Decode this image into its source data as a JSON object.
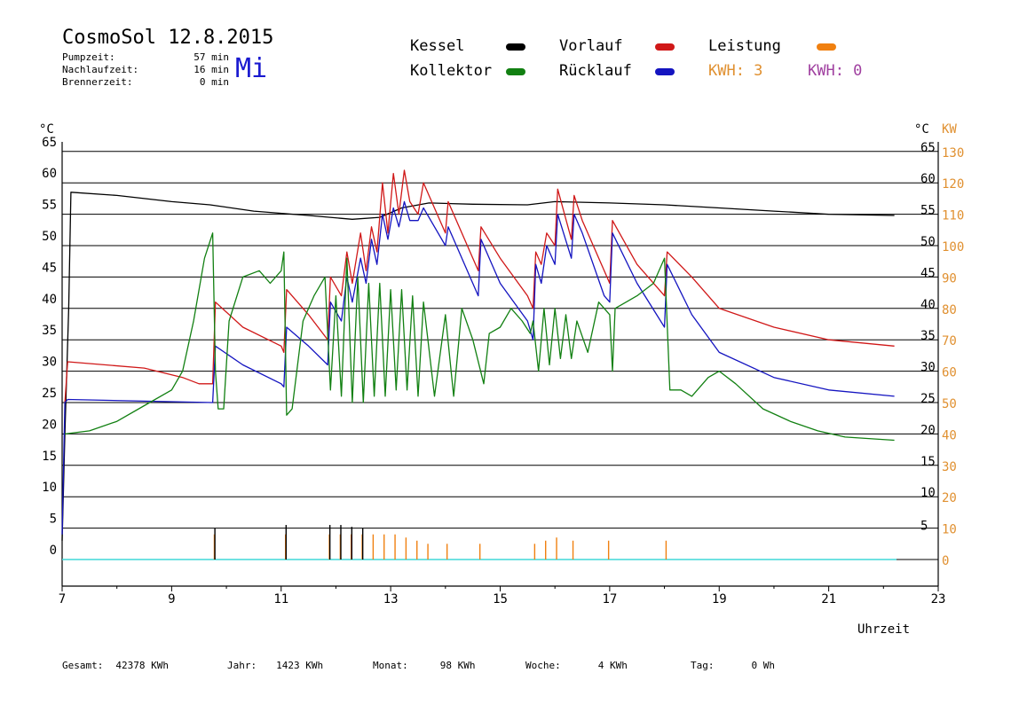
{
  "header": {
    "title": "CosmoSol 12.8.2015",
    "weekday": "Mi",
    "info": [
      {
        "label": "Pumpzeit:",
        "value": "57 min"
      },
      {
        "label": "Nachlaufzeit:",
        "value": "16 min"
      },
      {
        "label": "Brennerzeit:",
        "value": "0 min"
      }
    ]
  },
  "legend": {
    "kessel": {
      "label": "Kessel",
      "color": "#000000"
    },
    "vorlauf": {
      "label": "Vorlauf",
      "color": "#d01818"
    },
    "leistung": {
      "label": "Leistung",
      "color": "#f08010"
    },
    "kollektor": {
      "label": "Kollektor",
      "color": "#128012"
    },
    "ruecklauf": {
      "label": "Rücklauf",
      "color": "#1414c0"
    },
    "kwh1": {
      "label": "KWH: 3",
      "color": "#e09030"
    },
    "kwh2": {
      "label": "KWH: 0",
      "color": "#a040a0"
    }
  },
  "footer": [
    {
      "label": "Gesamt:",
      "value": "42378 KWh"
    },
    {
      "label": "Jahr:",
      "value": "1423 KWh"
    },
    {
      "label": "Monat:",
      "value": "98 KWh"
    },
    {
      "label": "Woche:",
      "value": "4 KWh"
    },
    {
      "label": "Tag:",
      "value": "0 Wh"
    }
  ],
  "chart_data": {
    "type": "line",
    "xlabel": "Uhrzeit",
    "ylabel_left": "°C",
    "ylabel_right_temp": "°C",
    "ylabel_right_power": "KW",
    "xlim": [
      7,
      23
    ],
    "ylim": [
      -2.5,
      68
    ],
    "x_ticks": [
      7,
      9,
      11,
      13,
      15,
      17,
      19,
      21,
      23
    ],
    "y_ticks": [
      0,
      5,
      10,
      15,
      20,
      25,
      30,
      35,
      40,
      45,
      50,
      55,
      60,
      65
    ],
    "y_ticks_right": [
      5,
      10,
      15,
      20,
      25,
      30,
      35,
      40,
      45,
      50,
      55,
      60,
      65
    ],
    "power_ticks": [
      0,
      10,
      20,
      30,
      40,
      50,
      60,
      70,
      80,
      90,
      100,
      110,
      120,
      130
    ],
    "gridlines": [
      0,
      5,
      10,
      15,
      20,
      25,
      30,
      35,
      40,
      45,
      50,
      55,
      60,
      65
    ],
    "baseline": {
      "y": 0,
      "color": "#40d8d8"
    },
    "series": [
      {
        "key": "kessel",
        "color": "#000000",
        "points": [
          [
            7.0,
            3
          ],
          [
            7.05,
            20
          ],
          [
            7.12,
            40
          ],
          [
            7.16,
            58.5
          ],
          [
            8,
            58
          ],
          [
            9,
            57
          ],
          [
            9.7,
            56.5
          ],
          [
            10.5,
            55.5
          ],
          [
            11.5,
            54.8
          ],
          [
            12.3,
            54.2
          ],
          [
            12.8,
            54.5
          ],
          [
            13.2,
            56
          ],
          [
            13.7,
            56.8
          ],
          [
            14.5,
            56.6
          ],
          [
            15.5,
            56.5
          ],
          [
            16,
            57
          ],
          [
            17,
            56.8
          ],
          [
            18,
            56.5
          ],
          [
            19,
            56
          ],
          [
            20,
            55.5
          ],
          [
            21,
            55
          ],
          [
            22.2,
            54.8
          ]
        ]
      },
      {
        "key": "vorlauf",
        "color": "#d01818",
        "points": [
          [
            7.05,
            25
          ],
          [
            7.1,
            31.5
          ],
          [
            8.5,
            30.5
          ],
          [
            9.2,
            29
          ],
          [
            9.5,
            28
          ],
          [
            9.75,
            28
          ],
          [
            9.8,
            41
          ],
          [
            10.3,
            37
          ],
          [
            11,
            34
          ],
          [
            11.05,
            33
          ],
          [
            11.1,
            43
          ],
          [
            11.5,
            39
          ],
          [
            11.85,
            35
          ],
          [
            11.9,
            45
          ],
          [
            12.1,
            42
          ],
          [
            12.2,
            49
          ],
          [
            12.3,
            44
          ],
          [
            12.45,
            52
          ],
          [
            12.55,
            46
          ],
          [
            12.65,
            53
          ],
          [
            12.75,
            49
          ],
          [
            12.85,
            60
          ],
          [
            12.95,
            52
          ],
          [
            13.05,
            61.5
          ],
          [
            13.15,
            55
          ],
          [
            13.25,
            62
          ],
          [
            13.35,
            57
          ],
          [
            13.5,
            55
          ],
          [
            13.6,
            60
          ],
          [
            14,
            52
          ],
          [
            14.05,
            57
          ],
          [
            14.6,
            46
          ],
          [
            14.65,
            53
          ],
          [
            15,
            48
          ],
          [
            15.5,
            42
          ],
          [
            15.6,
            40
          ],
          [
            15.65,
            49
          ],
          [
            15.75,
            47
          ],
          [
            15.85,
            52
          ],
          [
            16,
            50
          ],
          [
            16.05,
            59
          ],
          [
            16.3,
            51
          ],
          [
            16.35,
            58
          ],
          [
            16.5,
            54
          ],
          [
            16.9,
            46
          ],
          [
            17.0,
            44
          ],
          [
            17.05,
            54
          ],
          [
            17.5,
            47
          ],
          [
            18,
            42
          ],
          [
            18.05,
            49
          ],
          [
            18.5,
            45
          ],
          [
            19,
            40
          ],
          [
            20,
            37
          ],
          [
            21,
            35
          ],
          [
            22.2,
            34
          ]
        ]
      },
      {
        "key": "ruecklauf",
        "color": "#1414c0",
        "points": [
          [
            7.0,
            4
          ],
          [
            7.05,
            25
          ],
          [
            7.1,
            25.5
          ],
          [
            9.75,
            25
          ],
          [
            9.8,
            34
          ],
          [
            10.3,
            31
          ],
          [
            11,
            28
          ],
          [
            11.05,
            27.5
          ],
          [
            11.1,
            37
          ],
          [
            11.5,
            34
          ],
          [
            11.85,
            31
          ],
          [
            11.9,
            41
          ],
          [
            12.1,
            38
          ],
          [
            12.2,
            45
          ],
          [
            12.3,
            41
          ],
          [
            12.45,
            48
          ],
          [
            12.55,
            44
          ],
          [
            12.65,
            51
          ],
          [
            12.75,
            47
          ],
          [
            12.85,
            55
          ],
          [
            12.95,
            51
          ],
          [
            13.05,
            56
          ],
          [
            13.15,
            53
          ],
          [
            13.25,
            57
          ],
          [
            13.35,
            54
          ],
          [
            13.5,
            54
          ],
          [
            13.6,
            56
          ],
          [
            14,
            50
          ],
          [
            14.05,
            53
          ],
          [
            14.6,
            42
          ],
          [
            14.65,
            51
          ],
          [
            15,
            44
          ],
          [
            15.5,
            38
          ],
          [
            15.6,
            35
          ],
          [
            15.65,
            47
          ],
          [
            15.75,
            44
          ],
          [
            15.85,
            50
          ],
          [
            16,
            47
          ],
          [
            16.05,
            55
          ],
          [
            16.3,
            48
          ],
          [
            16.35,
            55
          ],
          [
            16.5,
            52
          ],
          [
            16.9,
            42
          ],
          [
            17.0,
            41
          ],
          [
            17.05,
            52
          ],
          [
            17.5,
            44
          ],
          [
            18,
            37
          ],
          [
            18.05,
            47
          ],
          [
            18.5,
            39
          ],
          [
            19,
            33
          ],
          [
            20,
            29
          ],
          [
            21,
            27
          ],
          [
            22.2,
            26
          ]
        ]
      },
      {
        "key": "kollektor",
        "color": "#128012",
        "points": [
          [
            7.05,
            20
          ],
          [
            7.5,
            20.5
          ],
          [
            8,
            22
          ],
          [
            8.5,
            24.5
          ],
          [
            9,
            27
          ],
          [
            9.2,
            30
          ],
          [
            9.4,
            38
          ],
          [
            9.6,
            48
          ],
          [
            9.75,
            52
          ],
          [
            9.8,
            30
          ],
          [
            9.85,
            24
          ],
          [
            9.95,
            24
          ],
          [
            10.05,
            38
          ],
          [
            10.3,
            45
          ],
          [
            10.6,
            46
          ],
          [
            10.8,
            44
          ],
          [
            11.0,
            46
          ],
          [
            11.05,
            49
          ],
          [
            11.1,
            23
          ],
          [
            11.2,
            24
          ],
          [
            11.4,
            38
          ],
          [
            11.6,
            42
          ],
          [
            11.8,
            45
          ],
          [
            11.9,
            27
          ],
          [
            12.0,
            42
          ],
          [
            12.1,
            26
          ],
          [
            12.2,
            48
          ],
          [
            12.3,
            25
          ],
          [
            12.4,
            45
          ],
          [
            12.5,
            25
          ],
          [
            12.6,
            44
          ],
          [
            12.7,
            26
          ],
          [
            12.8,
            44
          ],
          [
            12.9,
            26
          ],
          [
            13.0,
            43
          ],
          [
            13.1,
            27
          ],
          [
            13.2,
            43
          ],
          [
            13.3,
            27
          ],
          [
            13.4,
            42
          ],
          [
            13.5,
            26
          ],
          [
            13.6,
            41
          ],
          [
            13.8,
            26
          ],
          [
            14.0,
            39
          ],
          [
            14.15,
            26
          ],
          [
            14.3,
            40
          ],
          [
            14.5,
            35
          ],
          [
            14.7,
            28
          ],
          [
            14.8,
            36
          ],
          [
            15.0,
            37
          ],
          [
            15.2,
            40
          ],
          [
            15.4,
            38
          ],
          [
            15.55,
            36
          ],
          [
            15.6,
            38
          ],
          [
            15.7,
            30
          ],
          [
            15.8,
            40
          ],
          [
            15.9,
            31
          ],
          [
            16.0,
            40
          ],
          [
            16.1,
            32
          ],
          [
            16.2,
            39
          ],
          [
            16.3,
            32
          ],
          [
            16.4,
            38
          ],
          [
            16.6,
            33
          ],
          [
            16.8,
            41
          ],
          [
            17.0,
            39
          ],
          [
            17.05,
            30
          ],
          [
            17.1,
            40
          ],
          [
            17.3,
            41
          ],
          [
            17.5,
            42
          ],
          [
            17.8,
            44
          ],
          [
            18.0,
            48
          ],
          [
            18.1,
            27
          ],
          [
            18.3,
            27
          ],
          [
            18.5,
            26
          ],
          [
            18.8,
            29
          ],
          [
            19.0,
            30
          ],
          [
            19.3,
            28
          ],
          [
            19.8,
            24
          ],
          [
            20.3,
            22
          ],
          [
            20.8,
            20.5
          ],
          [
            21.3,
            19.5
          ],
          [
            22.2,
            19
          ]
        ]
      },
      {
        "key": "leistung",
        "color": "#f08010",
        "spikes": [
          [
            9.78,
            4
          ],
          [
            11.08,
            4
          ],
          [
            11.88,
            4
          ],
          [
            12.08,
            4
          ],
          [
            12.28,
            4
          ],
          [
            12.48,
            4
          ],
          [
            12.68,
            4
          ],
          [
            12.88,
            4
          ],
          [
            13.08,
            4
          ],
          [
            13.28,
            3.5
          ],
          [
            13.48,
            3
          ],
          [
            13.68,
            2.5
          ],
          [
            14.03,
            2.5
          ],
          [
            14.63,
            2.5
          ],
          [
            15.63,
            2.5
          ],
          [
            15.83,
            3
          ],
          [
            16.03,
            3.5
          ],
          [
            16.33,
            3
          ],
          [
            16.98,
            3
          ],
          [
            18.03,
            3
          ]
        ]
      },
      {
        "key": "kessel_spikes",
        "color": "#000000",
        "spikes": [
          [
            9.79,
            5
          ],
          [
            11.09,
            5.5
          ],
          [
            11.89,
            5.5
          ],
          [
            12.09,
            5.5
          ],
          [
            12.29,
            5.2
          ],
          [
            12.49,
            5
          ]
        ]
      }
    ]
  }
}
